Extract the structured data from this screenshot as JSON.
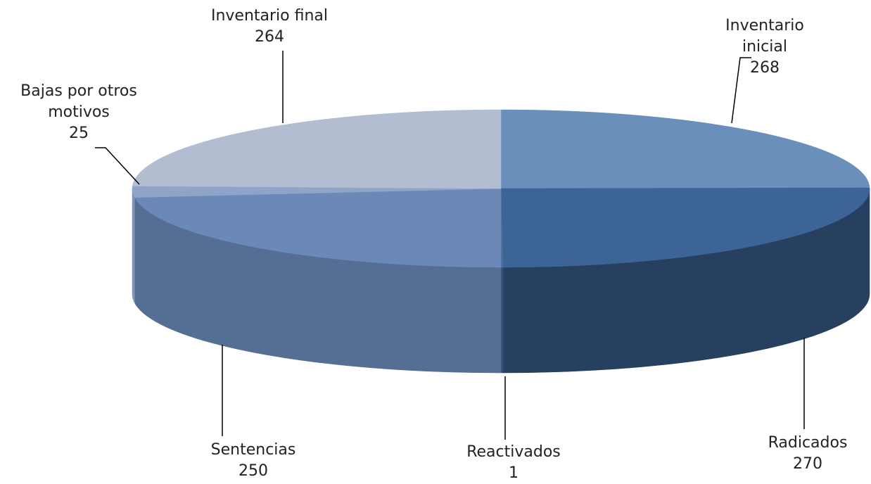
{
  "chart_data": {
    "type": "pie3d",
    "categories": [
      "Inventario inicial",
      "Radicados",
      "Reactivados",
      "Sentencias",
      "Bajas por otros motivos",
      "Inventario final"
    ],
    "values": [
      268,
      270,
      1,
      250,
      25,
      264
    ],
    "colors": [
      "#6a8fbb",
      "#3d6496",
      "#4a6fa0",
      "#6a88b8",
      "#8fa5c7",
      "#b3bdd1"
    ]
  }
}
